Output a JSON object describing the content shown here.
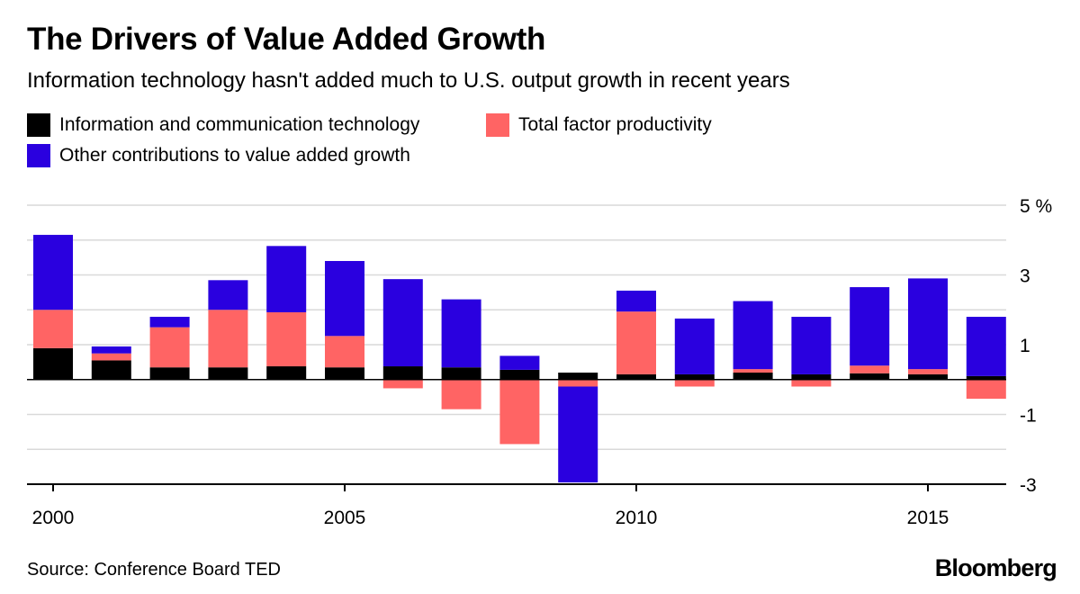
{
  "title": "The Drivers of Value Added Growth",
  "subtitle": "Information technology hasn't added much to U.S. output growth in recent years",
  "source": "Source: Conference Board TED",
  "brand": "Bloomberg",
  "colors": {
    "ict": "#000000",
    "tfp": "#ff6464",
    "other": "#2a00df",
    "grid": "#d9d9d9",
    "axis": "#000000"
  },
  "chart_data": {
    "type": "bar",
    "stacked": true,
    "title": "The Drivers of Value Added Growth",
    "categories": [
      "2000",
      "2001",
      "2002",
      "2003",
      "2004",
      "2005",
      "2006",
      "2007",
      "2008",
      "2009",
      "2010",
      "2011",
      "2012",
      "2013",
      "2014",
      "2015",
      "2016"
    ],
    "x_tick_labels": [
      "2000",
      "2005",
      "2010",
      "2015"
    ],
    "y_tick_labels": [
      "5 %",
      "3",
      "1",
      "-1",
      "-3"
    ],
    "y_ticks": [
      5,
      3,
      1,
      -1,
      -3
    ],
    "ylim": [
      -3,
      5
    ],
    "grid": true,
    "legend_position": "top-left",
    "series": [
      {
        "name": "Information and communication technology",
        "color": "#000000",
        "values": [
          0.9,
          0.55,
          0.35,
          0.35,
          0.38,
          0.35,
          0.38,
          0.35,
          0.28,
          0.2,
          0.15,
          0.15,
          0.2,
          0.15,
          0.18,
          0.15,
          0.1
        ]
      },
      {
        "name": "Total factor productivity",
        "color": "#ff6464",
        "values": [
          1.1,
          0.2,
          1.15,
          1.65,
          1.55,
          0.9,
          -0.25,
          -0.85,
          -1.85,
          -0.2,
          1.8,
          -0.2,
          0.1,
          -0.2,
          0.22,
          0.15,
          -0.55
        ]
      },
      {
        "name": "Other contributions to value added growth",
        "color": "#2a00df",
        "values": [
          2.15,
          0.2,
          0.3,
          0.85,
          1.9,
          2.15,
          2.5,
          1.95,
          0.4,
          -2.75,
          0.6,
          1.6,
          1.95,
          1.65,
          2.25,
          2.6,
          1.7
        ]
      }
    ]
  }
}
